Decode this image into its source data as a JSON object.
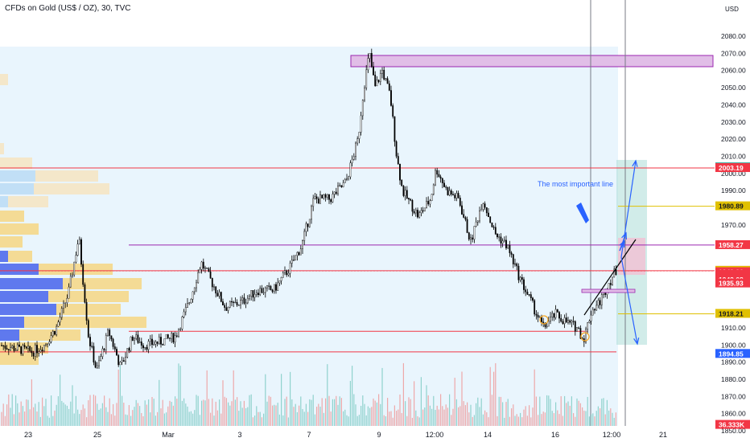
{
  "header": {
    "title": "CFDs on Gold (US$ / OZ), 30, TVC",
    "currency": "USD"
  },
  "chart_data": {
    "type": "candlestick",
    "title": "CFDs on Gold (US$ / OZ), 30, TVC",
    "ylim": [
      1845,
      2084
    ],
    "y_ticks": [
      1850,
      1860,
      1870,
      1880,
      1890,
      1900,
      1910,
      1918.21,
      1970,
      1990,
      2000,
      2010,
      2020,
      2030,
      2040,
      2050,
      2060,
      2070,
      2080
    ],
    "x_ticks": [
      "23",
      "25",
      "Mar",
      "3",
      "7",
      "9",
      "12:00",
      "14",
      "16",
      "12:00",
      "21"
    ],
    "price_path": [
      [
        0,
        1900
      ],
      [
        40,
        1896
      ],
      [
        55,
        1900
      ],
      [
        70,
        1910
      ],
      [
        85,
        1930
      ],
      [
        98,
        1963
      ],
      [
        110,
        1905
      ],
      [
        120,
        1885
      ],
      [
        135,
        1908
      ],
      [
        150,
        1887
      ],
      [
        165,
        1905
      ],
      [
        180,
        1900
      ],
      [
        200,
        1902
      ],
      [
        218,
        1905
      ],
      [
        235,
        1925
      ],
      [
        250,
        1948
      ],
      [
        265,
        1935
      ],
      [
        280,
        1922
      ],
      [
        300,
        1925
      ],
      [
        320,
        1932
      ],
      [
        340,
        1932
      ],
      [
        360,
        1945
      ],
      [
        375,
        1958
      ],
      [
        390,
        1985
      ],
      [
        410,
        1985
      ],
      [
        430,
        1995
      ],
      [
        445,
        2020
      ],
      [
        452,
        2050
      ],
      [
        459,
        2070
      ],
      [
        466,
        2050
      ],
      [
        475,
        2060
      ],
      [
        485,
        2045
      ],
      [
        493,
        2010
      ],
      [
        500,
        1990
      ],
      [
        520,
        1975
      ],
      [
        535,
        1985
      ],
      [
        542,
        2003
      ],
      [
        555,
        1990
      ],
      [
        570,
        1985
      ],
      [
        585,
        1960
      ],
      [
        600,
        1985
      ],
      [
        615,
        1965
      ],
      [
        630,
        1958
      ],
      [
        645,
        1940
      ],
      [
        660,
        1925
      ],
      [
        675,
        1910
      ],
      [
        690,
        1918
      ],
      [
        705,
        1913
      ],
      [
        718,
        1910
      ],
      [
        725,
        1903
      ],
      [
        735,
        1920
      ],
      [
        745,
        1925
      ],
      [
        755,
        1935
      ],
      [
        765,
        1943
      ]
    ],
    "horizontal_lines": [
      {
        "price": 2003.19,
        "color": "#f23645",
        "label": "2003.19"
      },
      {
        "price": 1980.89,
        "color": "#e0c000",
        "label": "1980.89"
      },
      {
        "price": 1958.27,
        "color": "#9c27b0",
        "label": "1958.27"
      },
      {
        "price": 1943.29,
        "color": "#f23645",
        "label": "1943.29"
      },
      {
        "price": 1943.26,
        "color": "#f23645",
        "label": "1943.26"
      },
      {
        "price": 1918.21,
        "color": "#e0c000",
        "label": "1918.21"
      },
      {
        "price": 1908,
        "color": "#f23645",
        "label": ""
      },
      {
        "price": 1896,
        "color": "#f23645",
        "label": ""
      }
    ],
    "price_badges": [
      {
        "price": 2003.59,
        "text": "2003.59",
        "color": "#26a69a"
      },
      {
        "price": 2003.19,
        "text": "2003.19",
        "color": "#f23645"
      },
      {
        "price": 1980.89,
        "text": "1980.89",
        "color": "#e0c000"
      },
      {
        "price": 1958.27,
        "text": "1958.27",
        "color": "#f23645"
      },
      {
        "price": 1943.29,
        "text": "1943.29",
        "color": "#f23645"
      },
      {
        "price": 1943.27,
        "text": "1943.27",
        "color": "#e0c000"
      },
      {
        "price": 1942.5,
        "text": "1943.26",
        "color": "#f23645"
      },
      {
        "price": 1941.0,
        "text": "1942.89",
        "color": "#f23645"
      },
      {
        "price": 1939.5,
        "text": "00:42",
        "color": "#f23645"
      },
      {
        "price": 1938.2,
        "text": "1942.68",
        "color": "#f23645"
      },
      {
        "price": 1935.93,
        "text": "1935.93",
        "color": "#f23645"
      },
      {
        "price": 1918.21,
        "text": "1918.21",
        "color": "#e0c000"
      },
      {
        "price": 1894.85,
        "text": "1894.85",
        "color": "#2962ff"
      },
      {
        "price": 1853.5,
        "text": "36.333K",
        "color": "#f23645"
      }
    ],
    "annotation": "The most important line",
    "colors": {
      "up": "#000000",
      "down": "#000000",
      "volume_up": "#ef9a9a",
      "volume_down": "#80cbc4",
      "range_box": "#e3f2fd",
      "purple_zone": "#e1bee7",
      "projection": "#b2dfdb",
      "arrow": "#2962ff"
    }
  }
}
